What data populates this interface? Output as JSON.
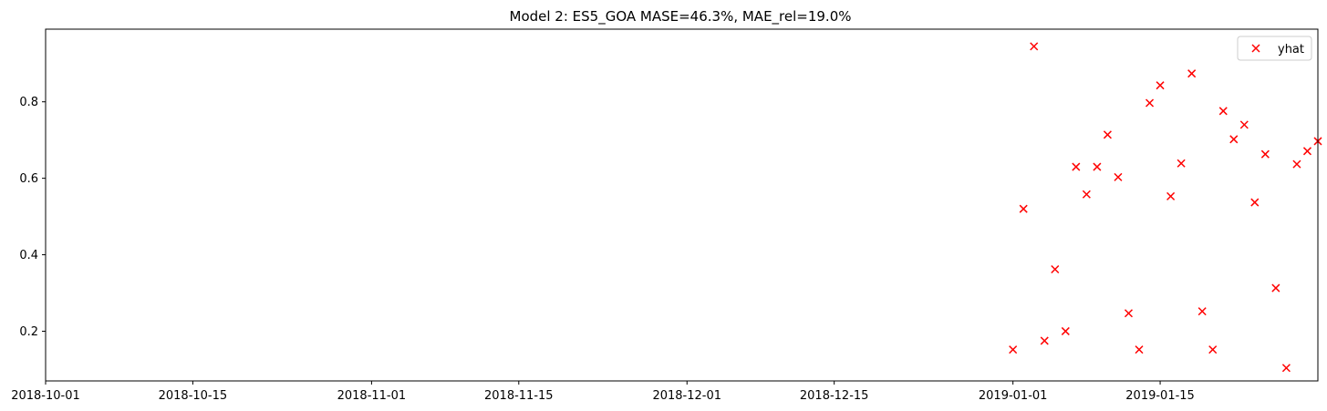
{
  "chart_data": {
    "type": "scatter",
    "title": "Model 2: ES5_GOA MASE=46.3%, MAE_rel=19.0%",
    "xlabel": "",
    "ylabel": "",
    "x_axis_type": "date",
    "xlim": [
      "2018-10-01",
      "2019-01-30"
    ],
    "ylim": [
      0.07,
      0.99
    ],
    "x_ticks": [
      {
        "value": "2018-10-01",
        "label": "2018-10-01"
      },
      {
        "value": "2018-10-15",
        "label": "2018-10-15"
      },
      {
        "value": "2018-11-01",
        "label": "2018-11-01"
      },
      {
        "value": "2018-11-15",
        "label": "2018-11-15"
      },
      {
        "value": "2018-12-01",
        "label": "2018-12-01"
      },
      {
        "value": "2018-12-15",
        "label": "2018-12-15"
      },
      {
        "value": "2019-01-01",
        "label": "2019-01-01"
      },
      {
        "value": "2019-01-15",
        "label": "2019-01-15"
      }
    ],
    "y_ticks": [
      {
        "value": 0.2,
        "label": "0.2"
      },
      {
        "value": 0.4,
        "label": "0.4"
      },
      {
        "value": 0.6,
        "label": "0.6"
      },
      {
        "value": 0.8,
        "label": "0.8"
      }
    ],
    "grid": false,
    "legend": {
      "position": "top-right"
    },
    "marker": "x",
    "color": "#ff0000",
    "series": [
      {
        "name": "yhat",
        "x": [
          "2019-01-01",
          "2019-01-02",
          "2019-01-03",
          "2019-01-04",
          "2019-01-05",
          "2019-01-06",
          "2019-01-07",
          "2019-01-08",
          "2019-01-09",
          "2019-01-10",
          "2019-01-11",
          "2019-01-12",
          "2019-01-13",
          "2019-01-14",
          "2019-01-15",
          "2019-01-16",
          "2019-01-17",
          "2019-01-18",
          "2019-01-19",
          "2019-01-20",
          "2019-01-21",
          "2019-01-22",
          "2019-01-23",
          "2019-01-24",
          "2019-01-25",
          "2019-01-26",
          "2019-01-27",
          "2019-01-28",
          "2019-01-29",
          "2019-01-30"
        ],
        "y": [
          0.152,
          0.52,
          0.945,
          0.175,
          0.362,
          0.2,
          0.63,
          0.558,
          0.63,
          0.714,
          0.603,
          0.247,
          0.152,
          0.797,
          0.843,
          0.553,
          0.639,
          0.874,
          0.252,
          0.152,
          0.776,
          0.702,
          0.74,
          0.537,
          0.663,
          0.313,
          0.104,
          0.637,
          0.671,
          0.697
        ]
      }
    ]
  }
}
